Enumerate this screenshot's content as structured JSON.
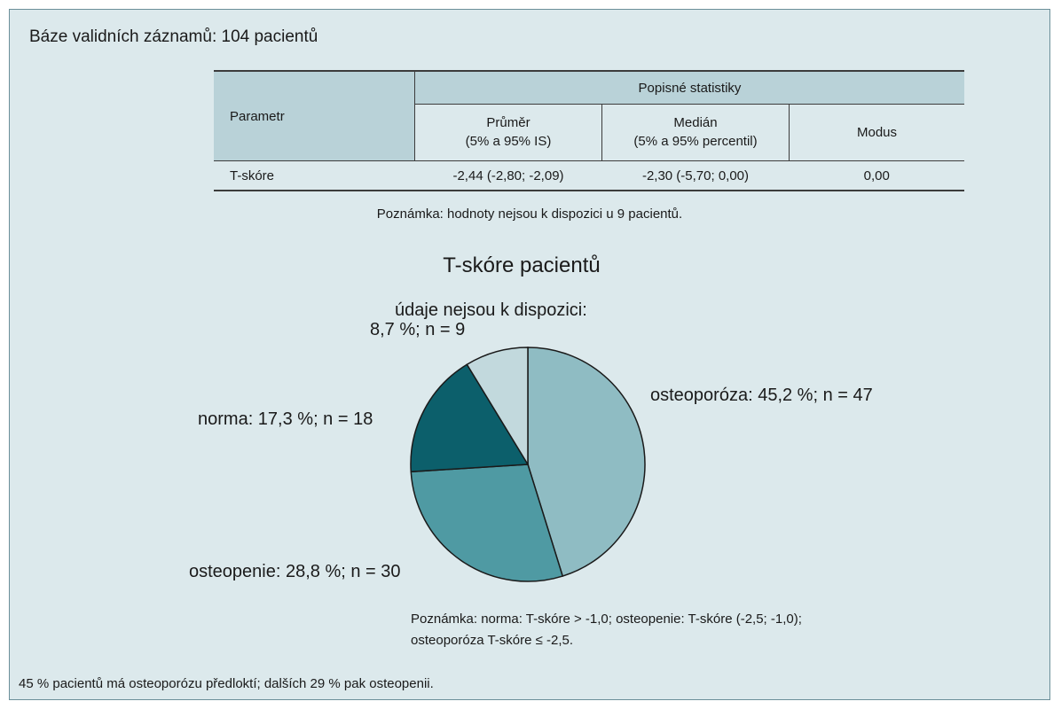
{
  "header": {
    "base_text": "Báze validních záznamů: 104 pacientů"
  },
  "table": {
    "param_header": "Parametr",
    "group_header": "Popisné statistiky",
    "columns": [
      {
        "title": "Průměr",
        "subtitle": "(5% a 95% IS)"
      },
      {
        "title": "Medián",
        "subtitle": "(5% a 95% percentil)"
      },
      {
        "title": "Modus",
        "subtitle": ""
      }
    ],
    "rows": [
      {
        "param": "T-skóre",
        "cells": [
          "-2,44 (-2,80; -2,09)",
          "-2,30 (-5,70; 0,00)",
          "0,00"
        ]
      }
    ],
    "note": "Poznámka: hodnoty nejsou k dispozici u 9 pacientů."
  },
  "chart_data": {
    "type": "pie",
    "title": "T-skóre pacientů",
    "slices": [
      {
        "label": "osteoporóza: 45,2 %; n = 47",
        "value": 45.2,
        "n": 47,
        "color": "#8fbcc3"
      },
      {
        "label": "osteopenie: 28,8 %; n = 30",
        "value": 28.8,
        "n": 30,
        "color": "#4f9aa3"
      },
      {
        "label": "norma: 17,3 %; n = 18",
        "value": 17.3,
        "n": 18,
        "color": "#0c5f6b"
      },
      {
        "label": "údaje nejsou k dispozici: 8,7 %; n = 9",
        "label_lines": [
          "údaje nejsou k dispozici:",
          "8,7 %; n = 9"
        ],
        "value": 8.7,
        "n": 9,
        "color": "#c2d9dd"
      }
    ],
    "start": "12 o'clock",
    "direction": "clockwise",
    "note_lines": [
      "Poznámka: norma: T-skóre > -1,0; osteopenie: T-skóre (-2,5; -1,0);",
      "osteoporóza T-skóre ≤ -2,5."
    ]
  },
  "footer": {
    "text": "45 % pacientů má osteoporózu předloktí; dalších 29 % pak osteopenii."
  }
}
